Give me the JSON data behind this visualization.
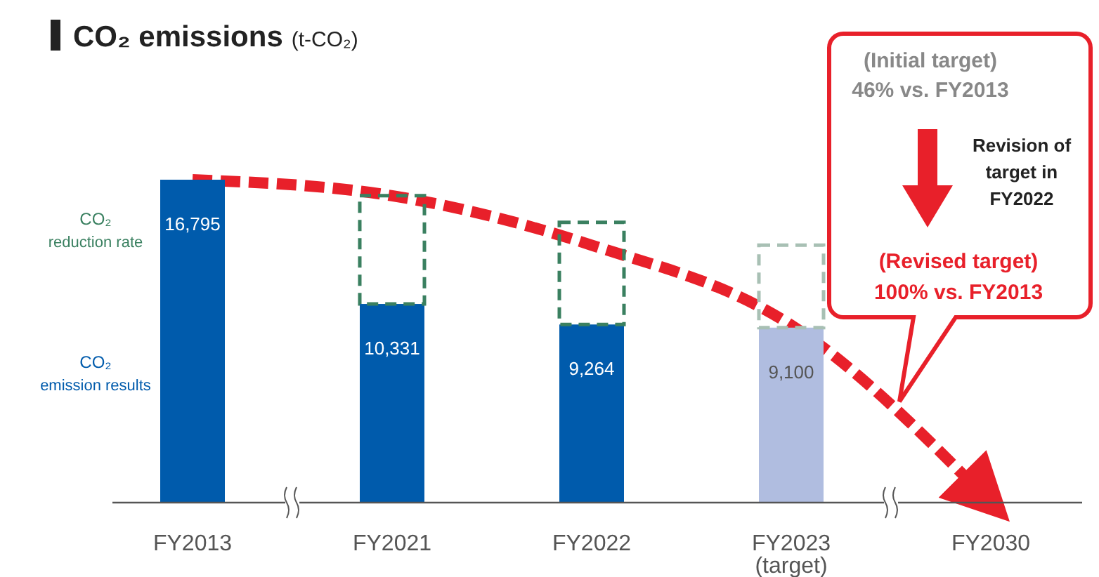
{
  "chart_data": {
    "type": "bar",
    "title": "CO₂ emissions",
    "subtitle": "(t-CO₂)",
    "categories": [
      "FY2013",
      "FY2021",
      "FY2022",
      "FY2023\n(target)",
      "FY2030"
    ],
    "stacked": true,
    "legend": "left",
    "series": [
      {
        "name": "CO₂\nemission results",
        "colors": [
          "#005bac",
          "#005bac",
          "#005bac",
          "#b0bde0",
          null
        ],
        "values": [
          16795,
          10331,
          9264,
          9100,
          0
        ],
        "value_labels": [
          "16,795",
          "10,331",
          "9,264",
          "9,100",
          null
        ]
      },
      {
        "name": "CO₂\nreduction rate",
        "colors": [
          null,
          "#3a8060",
          "#3a8060",
          "#a8c0b4",
          null
        ],
        "line_style": "dashed",
        "values": [
          0,
          5630,
          5310,
          4290,
          0
        ]
      },
      {
        "type": "line",
        "color": "#e8202a",
        "line_style": "dashed",
        "values": [
          16795,
          15960,
          13390,
          9230,
          0
        ]
      }
    ],
    "annotations": [
      "(Initial target)\n46% vs. FY2013",
      "Revision of\ntarget in\nFY2022",
      "(Revised target)\n100% vs. FY2013"
    ]
  }
}
